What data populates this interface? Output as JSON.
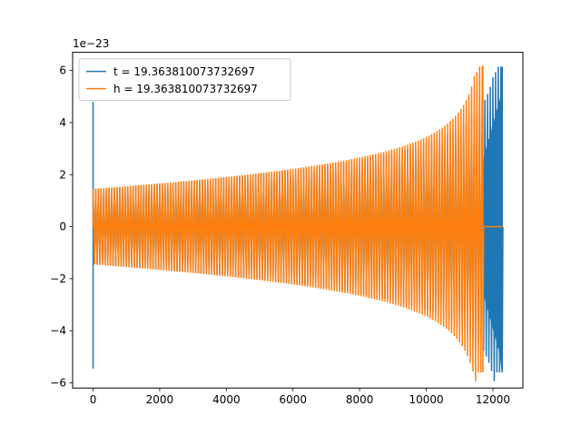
{
  "chart_data": {
    "type": "line",
    "title": "",
    "xlabel": "",
    "ylabel": "",
    "y_offset_text": "1e−23",
    "xlim": [
      -614,
      12900
    ],
    "ylim": [
      -6.2,
      6.7
    ],
    "x_ticks": [
      0,
      2000,
      4000,
      6000,
      8000,
      10000,
      12000
    ],
    "x_tick_labels": [
      "0",
      "2000",
      "4000",
      "6000",
      "8000",
      "10000",
      "12000"
    ],
    "y_ticks": [
      -6,
      -4,
      -2,
      0,
      2,
      4,
      6
    ],
    "y_tick_labels": [
      "−6",
      "−4",
      "−2",
      "0",
      "2",
      "4",
      "6"
    ],
    "grid": false,
    "legend_position": "top-left",
    "series": [
      {
        "name": "t = 19.363810073732697",
        "color": "#1f77b4",
        "envelope": {
          "spike": {
            "x": 0,
            "min": -5.45,
            "max": 4.8
          },
          "start_x": 0,
          "start_amplitude": 1.45,
          "chirp_peak_x": 12280,
          "peak_min": -5.6,
          "peak_max": 6.15,
          "zero_after_x": 12300,
          "end_x": 12300
        }
      },
      {
        "name": "h = 19.363810073732697",
        "color": "#ff7f0e",
        "envelope": {
          "spike": null,
          "start_x": 0,
          "start_amplitude": 1.45,
          "chirp_peak_x": 11700,
          "peak_min": -5.6,
          "peak_max": 6.15,
          "zero_after_x": 11720,
          "end_x": 12300
        }
      }
    ]
  }
}
